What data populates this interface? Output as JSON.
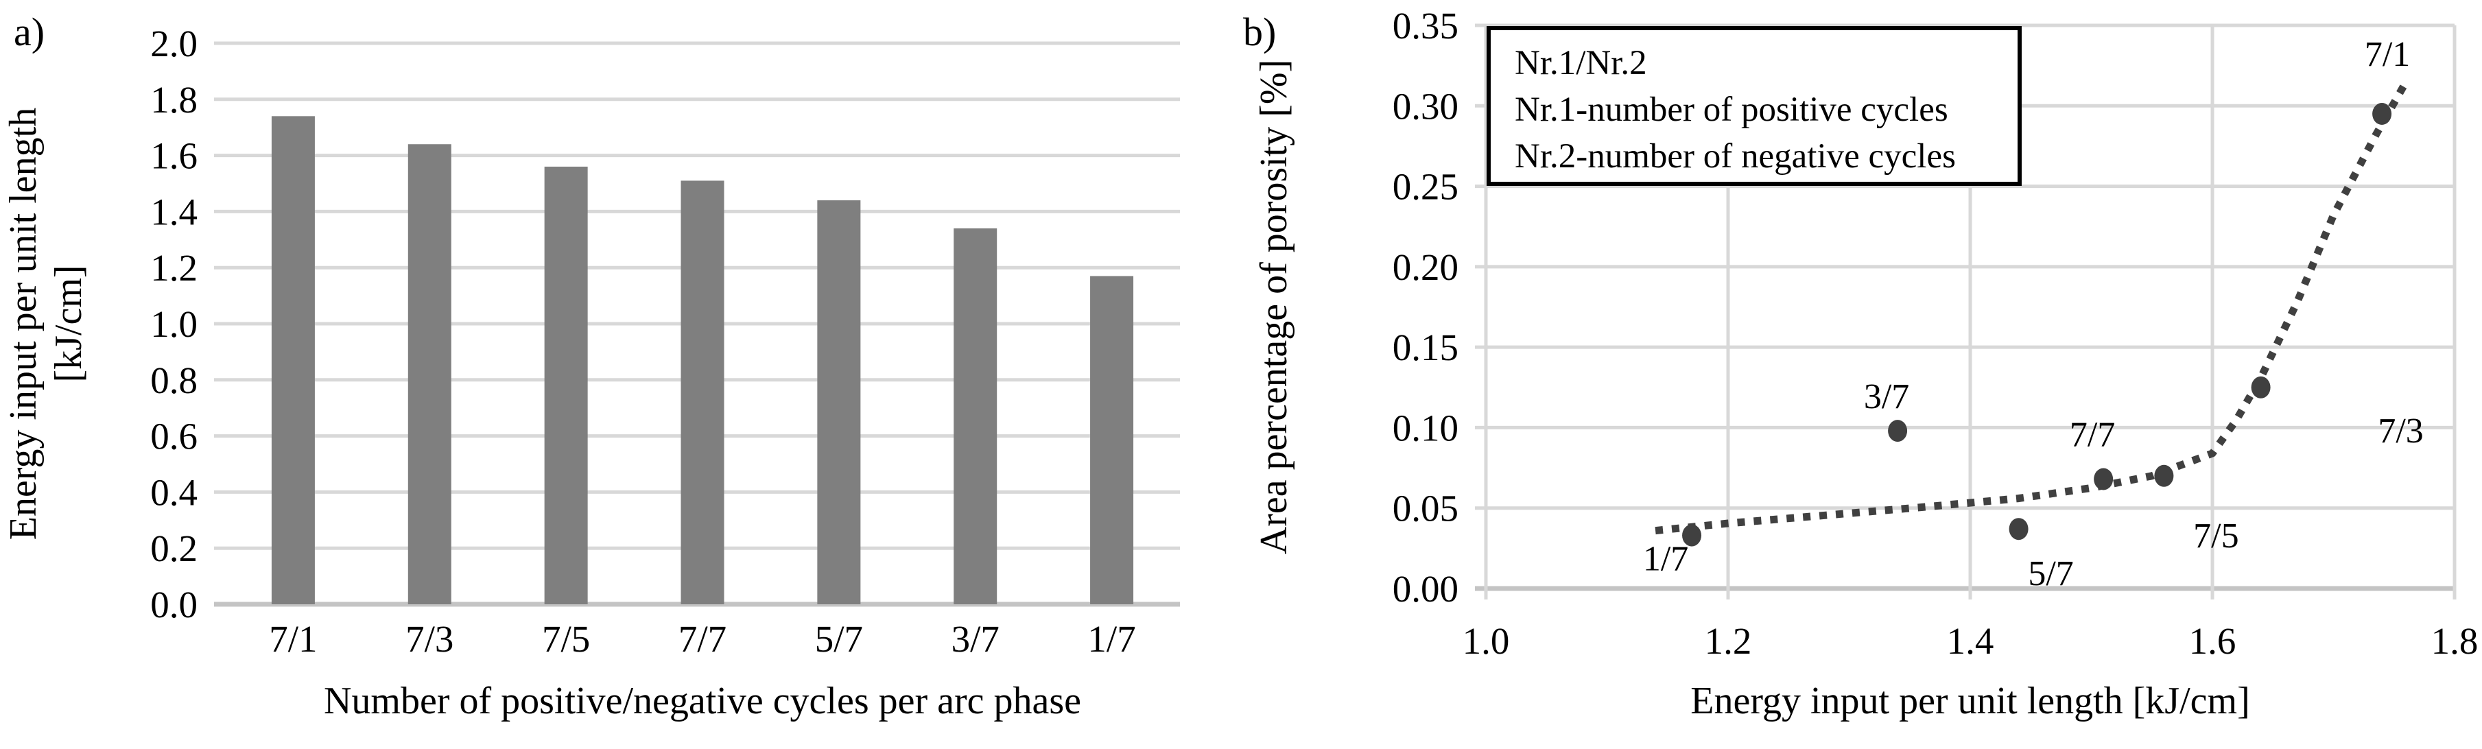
{
  "figure": {
    "panel_a_label": "a)",
    "panel_b_label": "b)",
    "colors": {
      "bar": "#7f7f7f",
      "grid": "#d8d8d8",
      "axis": "#c4c4c4",
      "point": "#404040",
      "trend": "#404040",
      "text": "#000000",
      "legend_border": "#000000",
      "legend_fill": "#ffffff",
      "background": "#ffffff"
    }
  },
  "chart_data": [
    {
      "type": "bar",
      "panel": "a",
      "title": "",
      "categories": [
        "7/1",
        "7/3",
        "7/5",
        "7/7",
        "5/7",
        "3/7",
        "1/7"
      ],
      "values": [
        1.74,
        1.64,
        1.56,
        1.51,
        1.44,
        1.34,
        1.17
      ],
      "xlabel": "Number of positive/negative cycles per arc phase",
      "ylabel_line1": "Energy input per unit length",
      "ylabel_line2": "[kJ/cm]",
      "ylim": [
        0.0,
        2.0
      ],
      "ytick_step": 0.2,
      "ytick_labels": [
        "0.0",
        "0.2",
        "0.4",
        "0.6",
        "0.8",
        "1.0",
        "1.2",
        "1.4",
        "1.6",
        "1.8",
        "2.0"
      ],
      "grid": "horizontal",
      "legend_position": "none"
    },
    {
      "type": "scatter",
      "panel": "b",
      "title": "",
      "points": [
        {
          "label": "1/7",
          "x": 1.17,
          "y": 0.033
        },
        {
          "label": "3/7",
          "x": 1.34,
          "y": 0.098
        },
        {
          "label": "5/7",
          "x": 1.44,
          "y": 0.037
        },
        {
          "label": "7/7",
          "x": 1.51,
          "y": 0.068
        },
        {
          "label": "7/5",
          "x": 1.56,
          "y": 0.07
        },
        {
          "label": "7/3",
          "x": 1.64,
          "y": 0.125
        },
        {
          "label": "7/1",
          "x": 1.74,
          "y": 0.295
        }
      ],
      "trend": {
        "style": "dotted",
        "shape": "exponential",
        "samples": [
          [
            1.14,
            0.036
          ],
          [
            1.2,
            0.0405
          ],
          [
            1.28,
            0.0455
          ],
          [
            1.36,
            0.0505
          ],
          [
            1.44,
            0.056
          ],
          [
            1.5,
            0.0625
          ],
          [
            1.55,
            0.07
          ],
          [
            1.6,
            0.084
          ],
          [
            1.62,
            0.105
          ],
          [
            1.64,
            0.131
          ],
          [
            1.67,
            0.178
          ],
          [
            1.7,
            0.232
          ],
          [
            1.735,
            0.282
          ],
          [
            1.76,
            0.315
          ]
        ]
      },
      "xlabel": "Energy input per unit length [kJ/cm]",
      "ylabel": "Area percentage of porosity [%]",
      "xlim": [
        1.0,
        1.8
      ],
      "ylim": [
        0.0,
        0.35
      ],
      "xtick_labels": [
        "1.0",
        "1.2",
        "1.4",
        "1.6",
        "1.8"
      ],
      "ytick_labels": [
        "0.00",
        "0.05",
        "0.10",
        "0.15",
        "0.20",
        "0.25",
        "0.30",
        "0.35"
      ],
      "grid": "both",
      "legend": {
        "position": "top-left-inside",
        "lines": [
          "Nr.1/Nr.2",
          "Nr.1-number of positive cycles",
          "Nr.2-number of negative cycles"
        ]
      }
    }
  ]
}
